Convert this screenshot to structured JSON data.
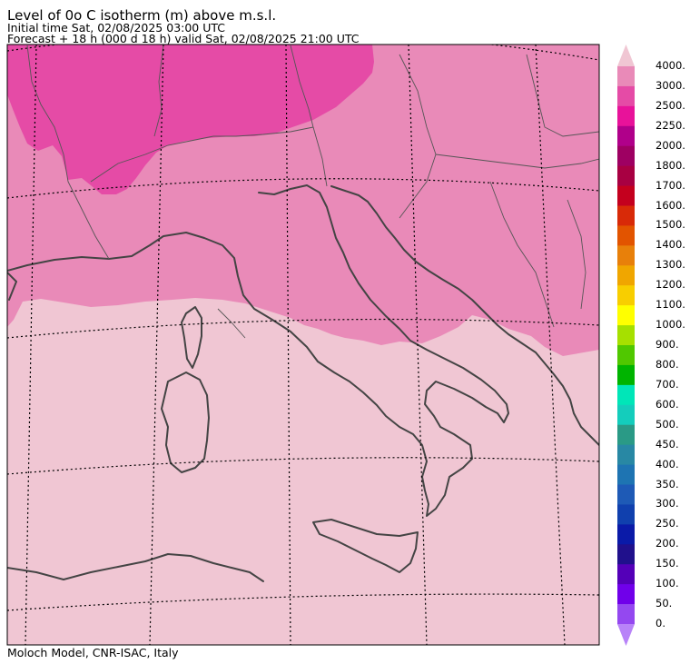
{
  "header": {
    "title": "Level of 0o C isotherm (m) above m.s.l.",
    "initial_time": "Initial time  Sat, 02/08/2025  03:00 UTC",
    "forecast": "Forecast  +  18 h  (000 d 18 h)  valid Sat, 02/08/2025 21:00 UTC"
  },
  "footer": {
    "credit": "Moloch Model, CNR-ISAC, Italy"
  },
  "map": {
    "region": "Italy and surrounding areas",
    "colors": {
      "low_zone": "#f0c6d3",
      "mid_zone": "#e98ab8",
      "high_zone": "#e54ba6",
      "coast": "#444444",
      "grid": "#000000"
    }
  },
  "legend": {
    "labels": [
      "4000.",
      "3000.",
      "2500.",
      "2250.",
      "2000.",
      "1800.",
      "1700.",
      "1600.",
      "1500.",
      "1400.",
      "1300.",
      "1200.",
      "1100.",
      "1000.",
      "900.",
      "800.",
      "700.",
      "600.",
      "500.",
      "450.",
      "400.",
      "350.",
      "300.",
      "250.",
      "200.",
      "150.",
      "100.",
      "50.",
      "0."
    ],
    "top_arrow_color": "#f0c6d3",
    "bottom_arrow_color": "#b883f8",
    "colors": [
      "#e98ab8",
      "#e54ba6",
      "#e8129a",
      "#b0008a",
      "#9e0062",
      "#a80042",
      "#c4001e",
      "#d82a08",
      "#e25400",
      "#e8800a",
      "#f0a600",
      "#f8ce00",
      "#ffff00",
      "#a6e000",
      "#50c800",
      "#00b400",
      "#00e6b8",
      "#14cdbc",
      "#2a9a86",
      "#2888a4",
      "#1e74b2",
      "#1e5ab6",
      "#1040ae",
      "#0a1aa8",
      "#20108c",
      "#5400b8",
      "#7000ea",
      "#9448f0"
    ]
  }
}
